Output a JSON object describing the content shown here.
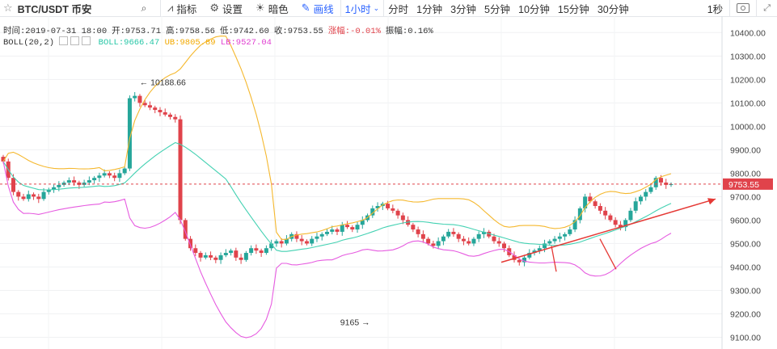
{
  "toolbar": {
    "symbol": "BTC/USDT 币安",
    "indicators": "指标",
    "settings": "设置",
    "theme": "暗色",
    "draw": "画线",
    "intervals": [
      "1小时",
      "分时",
      "1分钟",
      "3分钟",
      "5分钟",
      "10分钟",
      "15分钟",
      "30分钟"
    ],
    "active_interval": "1小时",
    "right_label": "1秒"
  },
  "ohlc_legend": {
    "time": "时间:2019-07-31 18:00",
    "open": "开:9753.71",
    "high": "高:9758.56",
    "low": "低:9742.60",
    "close": "收:9753.55",
    "change": "涨幅:-0.01%",
    "amplitude": "振幅:0.16%"
  },
  "boll_legend": {
    "name": "BOLL(20,2)",
    "boll": "BOLL:9666.47",
    "ub": "UB:9805.89",
    "lb": "LB:9527.04"
  },
  "colors": {
    "up": "#26a69a",
    "down": "#e0434b",
    "mid": "#43d1b2",
    "upper": "#f5b82e",
    "lower": "#e65be0",
    "arrow": "#e53935",
    "accent": "#2962ff"
  },
  "chart_data": {
    "type": "candlestick",
    "ylim": [
      9050,
      10470
    ],
    "yticks": [
      9100,
      9200,
      9300,
      9400,
      9500,
      9600,
      9700,
      9800,
      9900,
      10000,
      10100,
      10200,
      10300,
      10400
    ],
    "ytick_labels": [
      "9100.00",
      "9200.00",
      "9300.00",
      "9400.00",
      "9500.00",
      "9600.00",
      "9700.00",
      "9800.00",
      "9900.00",
      "10000.00",
      "10100.00",
      "10200.00",
      "10300.00",
      "10400.00"
    ],
    "last_price": 9753.55,
    "last_price_label": "9753.55",
    "annotations": [
      {
        "label": "← 10188.66",
        "price": 10188.66,
        "index": 26
      },
      {
        "label": "9165 →",
        "price": 9165,
        "index": 73
      }
    ],
    "bollinger": {
      "mid": 9666.47,
      "upper": 9805.89,
      "lower": 9527.04
    }
  }
}
